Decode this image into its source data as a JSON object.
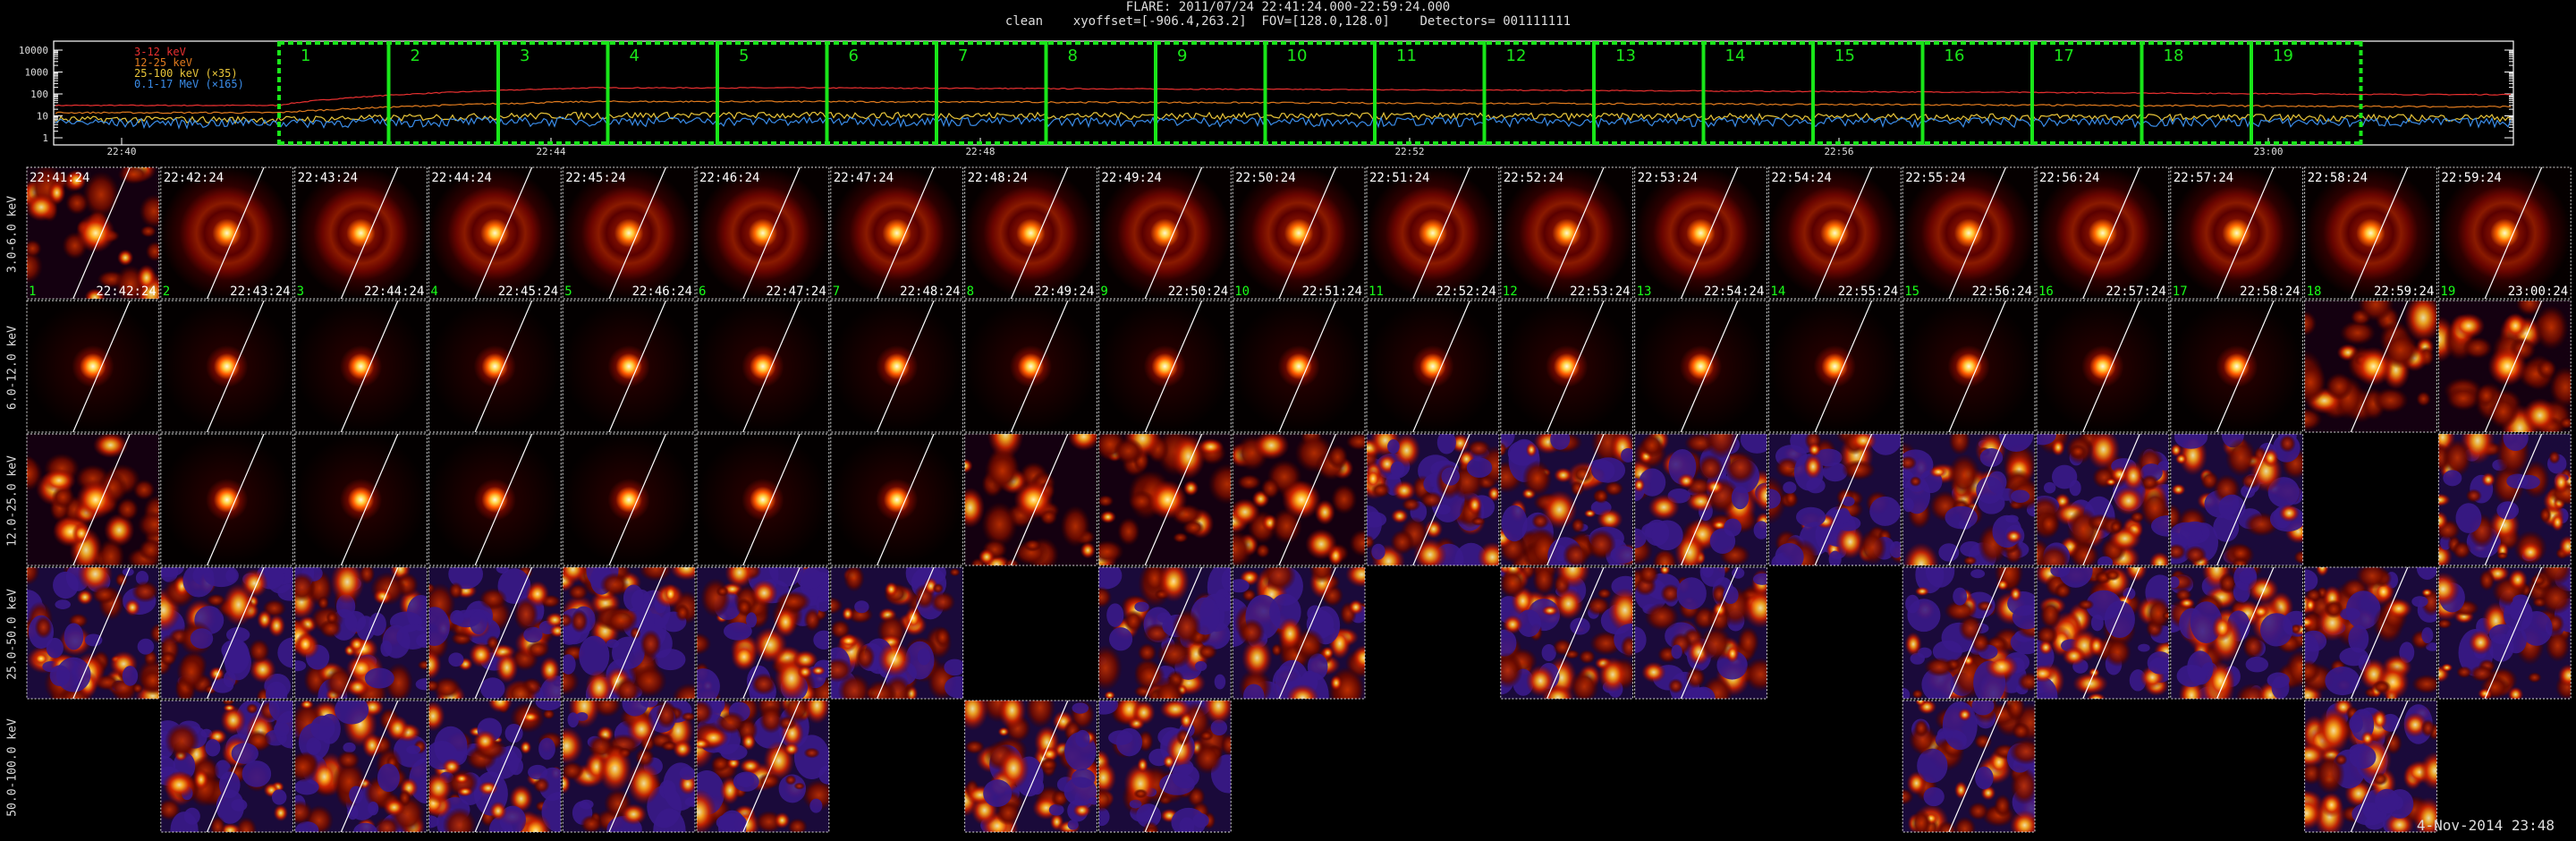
{
  "header": {
    "line1": "FLARE: 2011/07/24 22:41:24.000-22:59:24.000",
    "line2": "clean    xyoffset=[-906.4,263.2]  FOV=[128.0,128.0]    Detectors= 001111111"
  },
  "lightcurve": {
    "y_ticks": [
      "10000",
      "1000",
      "100",
      "10",
      "1"
    ],
    "x_ticks": [
      "22:40",
      "22:44",
      "22:48",
      "22:52",
      "22:56",
      "23:00"
    ],
    "legend": [
      {
        "label": "3-12 keV",
        "color": "#e83030"
      },
      {
        "label": "12-25 keV",
        "color": "#e07a1e"
      },
      {
        "label": "25-100 keV (×35)",
        "color": "#e8c53a"
      },
      {
        "label": "0.1-17 MeV (×165)",
        "color": "#3a8ce8"
      }
    ],
    "intervals": [
      "1",
      "2",
      "3",
      "4",
      "5",
      "6",
      "7",
      "8",
      "9",
      "10",
      "11",
      "12",
      "13",
      "14",
      "15",
      "16",
      "17",
      "18",
      "19"
    ],
    "interval_color": "#19e619"
  },
  "bands": [
    "3.0-6.0 keV",
    "6.0-12.0 keV",
    "12.0-25.0 keV",
    "25.0-50.0 keV",
    "50.0-100.0 keV"
  ],
  "start_times": [
    "22:41:24",
    "22:42:24",
    "22:43:24",
    "22:44:24",
    "22:45:24",
    "22:46:24",
    "22:47:24",
    "22:48:24",
    "22:49:24",
    "22:50:24",
    "22:51:24",
    "22:52:24",
    "22:53:24",
    "22:54:24",
    "22:55:24",
    "22:56:24",
    "22:57:24",
    "22:58:24",
    "22:59:24"
  ],
  "end_times": [
    "22:42:24",
    "22:43:24",
    "22:44:24",
    "22:45:24",
    "22:46:24",
    "22:47:24",
    "22:48:24",
    "22:49:24",
    "22:50:24",
    "22:51:24",
    "22:52:24",
    "22:53:24",
    "22:54:24",
    "22:55:24",
    "22:56:24",
    "22:57:24",
    "22:58:24",
    "22:59:24",
    "23:00:24"
  ],
  "image_types": [
    [
      "noisy",
      "ring",
      "ring",
      "ring",
      "ring",
      "ring",
      "ring",
      "ring",
      "ring",
      "ring",
      "ring",
      "ring",
      "ring",
      "ring",
      "ring",
      "ring",
      "ring",
      "ring",
      "ring"
    ],
    [
      "compact",
      "compact",
      "compact",
      "compact",
      "compact",
      "compact",
      "compact",
      "compact",
      "compact",
      "compact",
      "compact",
      "compact",
      "compact",
      "compact",
      "compact",
      "compact",
      "compact",
      "noisy",
      "noisy"
    ],
    [
      "noisy",
      "compact",
      "compact",
      "compact",
      "compact",
      "compact",
      "compact",
      "noisy",
      "noisy",
      "noisy",
      "speckle",
      "speckle",
      "speckle",
      "speckle",
      "speckle",
      "speckle",
      "speckle",
      "empty",
      "speckle"
    ],
    [
      "speckle",
      "speckle",
      "speckle",
      "speckle",
      "speckle",
      "speckle",
      "speckle",
      "empty",
      "speckle",
      "speckle",
      "empty",
      "speckle",
      "speckle",
      "empty",
      "speckle",
      "speckle",
      "speckle",
      "speckle",
      "speckle"
    ],
    [
      "empty",
      "speckle",
      "speckle",
      "speckle",
      "speckle",
      "speckle",
      "empty",
      "speckle",
      "speckle",
      "empty",
      "empty",
      "empty",
      "empty",
      "empty",
      "speckle",
      "empty",
      "empty",
      "speckle",
      "empty"
    ]
  ],
  "footer": "4-Nov-2014 23:48"
}
